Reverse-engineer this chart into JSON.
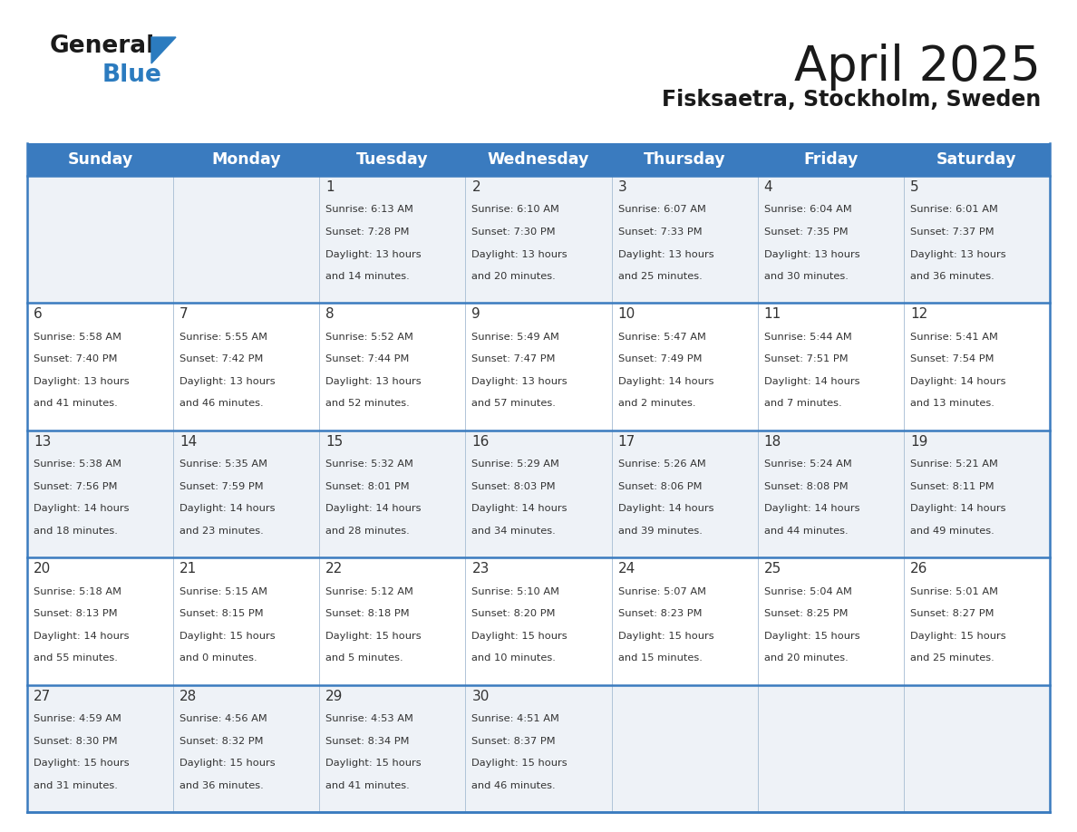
{
  "title": "April 2025",
  "subtitle": "Fisksaetra, Stockholm, Sweden",
  "days_of_week": [
    "Sunday",
    "Monday",
    "Tuesday",
    "Wednesday",
    "Thursday",
    "Friday",
    "Saturday"
  ],
  "header_bg": "#3a7bbf",
  "header_text": "#ffffff",
  "row_bg_odd": "#eef2f7",
  "row_bg_even": "#ffffff",
  "cell_border_color": "#3a7bbf",
  "thin_border_color": "#b0c4d8",
  "title_color": "#1a1a1a",
  "subtitle_color": "#1a1a1a",
  "text_color": "#333333",
  "logo_text_color": "#1a1a1a",
  "logo_blue_color": "#2b7bbf",
  "calendar_data": [
    [
      {
        "day": "",
        "sunrise": "",
        "sunset": "",
        "daylight": ""
      },
      {
        "day": "",
        "sunrise": "",
        "sunset": "",
        "daylight": ""
      },
      {
        "day": "1",
        "sunrise": "Sunrise: 6:13 AM",
        "sunset": "Sunset: 7:28 PM",
        "daylight": "Daylight: 13 hours\nand 14 minutes."
      },
      {
        "day": "2",
        "sunrise": "Sunrise: 6:10 AM",
        "sunset": "Sunset: 7:30 PM",
        "daylight": "Daylight: 13 hours\nand 20 minutes."
      },
      {
        "day": "3",
        "sunrise": "Sunrise: 6:07 AM",
        "sunset": "Sunset: 7:33 PM",
        "daylight": "Daylight: 13 hours\nand 25 minutes."
      },
      {
        "day": "4",
        "sunrise": "Sunrise: 6:04 AM",
        "sunset": "Sunset: 7:35 PM",
        "daylight": "Daylight: 13 hours\nand 30 minutes."
      },
      {
        "day": "5",
        "sunrise": "Sunrise: 6:01 AM",
        "sunset": "Sunset: 7:37 PM",
        "daylight": "Daylight: 13 hours\nand 36 minutes."
      }
    ],
    [
      {
        "day": "6",
        "sunrise": "Sunrise: 5:58 AM",
        "sunset": "Sunset: 7:40 PM",
        "daylight": "Daylight: 13 hours\nand 41 minutes."
      },
      {
        "day": "7",
        "sunrise": "Sunrise: 5:55 AM",
        "sunset": "Sunset: 7:42 PM",
        "daylight": "Daylight: 13 hours\nand 46 minutes."
      },
      {
        "day": "8",
        "sunrise": "Sunrise: 5:52 AM",
        "sunset": "Sunset: 7:44 PM",
        "daylight": "Daylight: 13 hours\nand 52 minutes."
      },
      {
        "day": "9",
        "sunrise": "Sunrise: 5:49 AM",
        "sunset": "Sunset: 7:47 PM",
        "daylight": "Daylight: 13 hours\nand 57 minutes."
      },
      {
        "day": "10",
        "sunrise": "Sunrise: 5:47 AM",
        "sunset": "Sunset: 7:49 PM",
        "daylight": "Daylight: 14 hours\nand 2 minutes."
      },
      {
        "day": "11",
        "sunrise": "Sunrise: 5:44 AM",
        "sunset": "Sunset: 7:51 PM",
        "daylight": "Daylight: 14 hours\nand 7 minutes."
      },
      {
        "day": "12",
        "sunrise": "Sunrise: 5:41 AM",
        "sunset": "Sunset: 7:54 PM",
        "daylight": "Daylight: 14 hours\nand 13 minutes."
      }
    ],
    [
      {
        "day": "13",
        "sunrise": "Sunrise: 5:38 AM",
        "sunset": "Sunset: 7:56 PM",
        "daylight": "Daylight: 14 hours\nand 18 minutes."
      },
      {
        "day": "14",
        "sunrise": "Sunrise: 5:35 AM",
        "sunset": "Sunset: 7:59 PM",
        "daylight": "Daylight: 14 hours\nand 23 minutes."
      },
      {
        "day": "15",
        "sunrise": "Sunrise: 5:32 AM",
        "sunset": "Sunset: 8:01 PM",
        "daylight": "Daylight: 14 hours\nand 28 minutes."
      },
      {
        "day": "16",
        "sunrise": "Sunrise: 5:29 AM",
        "sunset": "Sunset: 8:03 PM",
        "daylight": "Daylight: 14 hours\nand 34 minutes."
      },
      {
        "day": "17",
        "sunrise": "Sunrise: 5:26 AM",
        "sunset": "Sunset: 8:06 PM",
        "daylight": "Daylight: 14 hours\nand 39 minutes."
      },
      {
        "day": "18",
        "sunrise": "Sunrise: 5:24 AM",
        "sunset": "Sunset: 8:08 PM",
        "daylight": "Daylight: 14 hours\nand 44 minutes."
      },
      {
        "day": "19",
        "sunrise": "Sunrise: 5:21 AM",
        "sunset": "Sunset: 8:11 PM",
        "daylight": "Daylight: 14 hours\nand 49 minutes."
      }
    ],
    [
      {
        "day": "20",
        "sunrise": "Sunrise: 5:18 AM",
        "sunset": "Sunset: 8:13 PM",
        "daylight": "Daylight: 14 hours\nand 55 minutes."
      },
      {
        "day": "21",
        "sunrise": "Sunrise: 5:15 AM",
        "sunset": "Sunset: 8:15 PM",
        "daylight": "Daylight: 15 hours\nand 0 minutes."
      },
      {
        "day": "22",
        "sunrise": "Sunrise: 5:12 AM",
        "sunset": "Sunset: 8:18 PM",
        "daylight": "Daylight: 15 hours\nand 5 minutes."
      },
      {
        "day": "23",
        "sunrise": "Sunrise: 5:10 AM",
        "sunset": "Sunset: 8:20 PM",
        "daylight": "Daylight: 15 hours\nand 10 minutes."
      },
      {
        "day": "24",
        "sunrise": "Sunrise: 5:07 AM",
        "sunset": "Sunset: 8:23 PM",
        "daylight": "Daylight: 15 hours\nand 15 minutes."
      },
      {
        "day": "25",
        "sunrise": "Sunrise: 5:04 AM",
        "sunset": "Sunset: 8:25 PM",
        "daylight": "Daylight: 15 hours\nand 20 minutes."
      },
      {
        "day": "26",
        "sunrise": "Sunrise: 5:01 AM",
        "sunset": "Sunset: 8:27 PM",
        "daylight": "Daylight: 15 hours\nand 25 minutes."
      }
    ],
    [
      {
        "day": "27",
        "sunrise": "Sunrise: 4:59 AM",
        "sunset": "Sunset: 8:30 PM",
        "daylight": "Daylight: 15 hours\nand 31 minutes."
      },
      {
        "day": "28",
        "sunrise": "Sunrise: 4:56 AM",
        "sunset": "Sunset: 8:32 PM",
        "daylight": "Daylight: 15 hours\nand 36 minutes."
      },
      {
        "day": "29",
        "sunrise": "Sunrise: 4:53 AM",
        "sunset": "Sunset: 8:34 PM",
        "daylight": "Daylight: 15 hours\nand 41 minutes."
      },
      {
        "day": "30",
        "sunrise": "Sunrise: 4:51 AM",
        "sunset": "Sunset: 8:37 PM",
        "daylight": "Daylight: 15 hours\nand 46 minutes."
      },
      {
        "day": "",
        "sunrise": "",
        "sunset": "",
        "daylight": ""
      },
      {
        "day": "",
        "sunrise": "",
        "sunset": "",
        "daylight": ""
      },
      {
        "day": "",
        "sunrise": "",
        "sunset": "",
        "daylight": ""
      }
    ]
  ]
}
